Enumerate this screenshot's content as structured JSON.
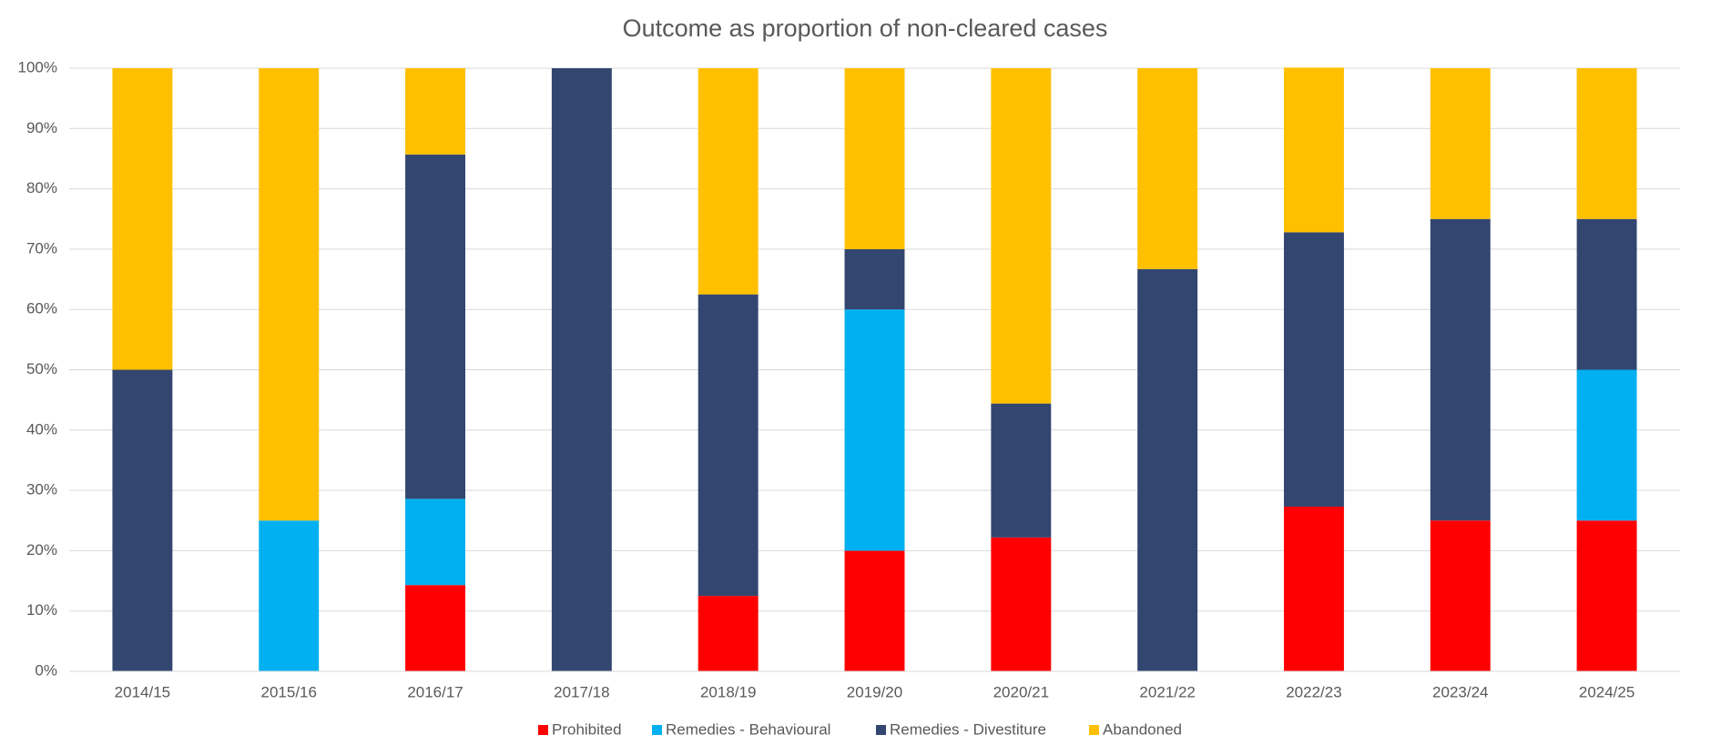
{
  "chart_data": {
    "type": "stacked_bar",
    "title": "Outcome as proportion of non-cleared cases",
    "categories": [
      "2014/15",
      "2015/16",
      "2016/17",
      "2017/18",
      "2018/19",
      "2019/20",
      "2020/21",
      "2021/22",
      "2022/23",
      "2023/24",
      "2024/25"
    ],
    "series": [
      {
        "name": "Prohibited",
        "color": "#ff0000",
        "values": [
          0,
          0,
          14.3,
          0,
          12.5,
          20,
          22.2,
          0,
          27.3,
          25,
          25
        ]
      },
      {
        "name": "Remedies - Behavioural",
        "color": "#00b0f0",
        "values": [
          0,
          25,
          14.3,
          0,
          0,
          40,
          0,
          0,
          0,
          0,
          25
        ]
      },
      {
        "name": "Remedies - Divestiture",
        "color": "#334670",
        "values": [
          50,
          0,
          57.1,
          100,
          50,
          10,
          22.2,
          66.7,
          45.5,
          50,
          25
        ]
      },
      {
        "name": "Abandoned",
        "color": "#ffc000",
        "values": [
          50,
          75,
          14.3,
          0,
          37.5,
          30,
          55.6,
          33.3,
          27.3,
          25,
          25
        ]
      }
    ],
    "ylim": [
      0,
      100
    ],
    "yticks": [
      {
        "value": 0,
        "label": "0%"
      },
      {
        "value": 10,
        "label": "10%"
      },
      {
        "value": 20,
        "label": "20%"
      },
      {
        "value": 30,
        "label": "30%"
      },
      {
        "value": 40,
        "label": "40%"
      },
      {
        "value": 50,
        "label": "50%"
      },
      {
        "value": 60,
        "label": "60%"
      },
      {
        "value": 70,
        "label": "70%"
      },
      {
        "value": 80,
        "label": "80%"
      },
      {
        "value": 90,
        "label": "90%"
      },
      {
        "value": 100,
        "label": "100%"
      }
    ],
    "grid": true,
    "legend": "bottom"
  }
}
